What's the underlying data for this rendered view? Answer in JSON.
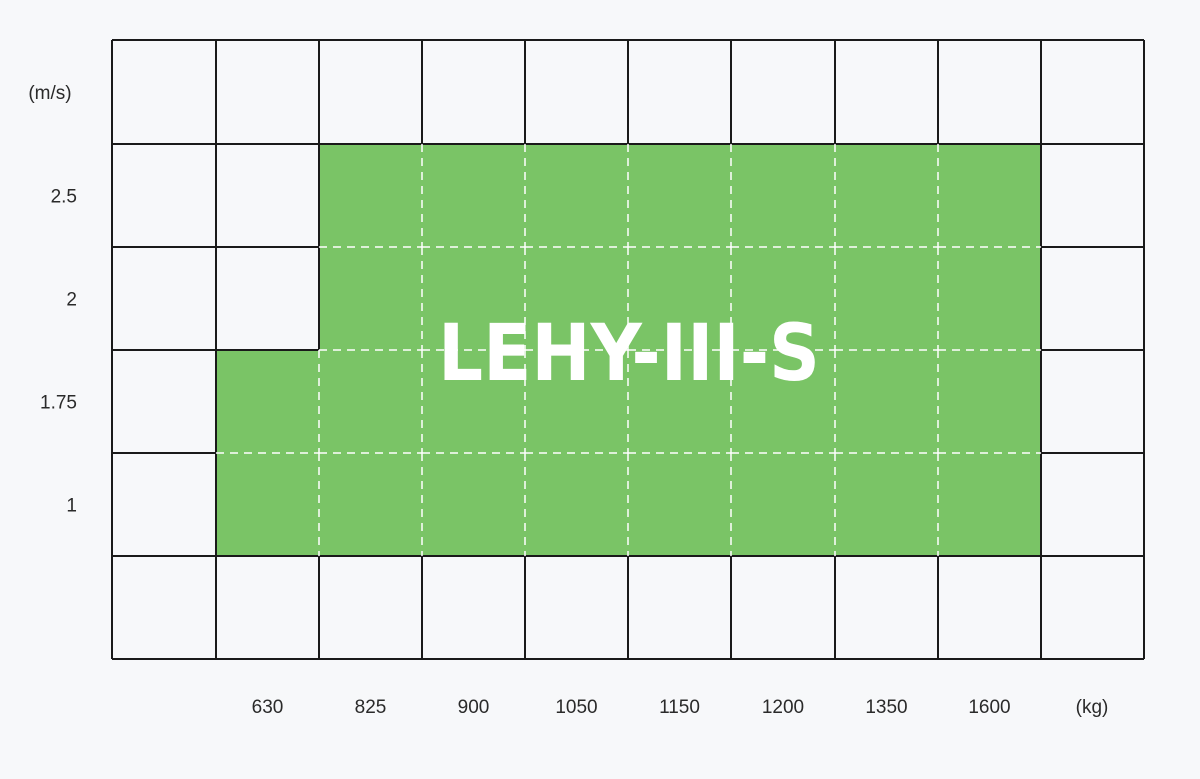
{
  "diagram": {
    "title": "LEHY-III-S",
    "y_unit": "(m/s)",
    "x_unit": "(kg)",
    "speeds": [
      "2.5",
      "2",
      "1.75",
      "1"
    ],
    "loads": [
      "630",
      "825",
      "900",
      "1050",
      "1150",
      "1200",
      "1350",
      "1600"
    ],
    "coverage": {
      "2.5": [
        "825",
        "900",
        "1050",
        "1150",
        "1200",
        "1350",
        "1600"
      ],
      "2": [
        "825",
        "900",
        "1050",
        "1150",
        "1200",
        "1350",
        "1600"
      ],
      "1.75": [
        "630",
        "825",
        "900",
        "1050",
        "1150",
        "1200",
        "1350",
        "1600"
      ],
      "1": [
        "630",
        "825",
        "900",
        "1050",
        "1150",
        "1200",
        "1350",
        "1600"
      ]
    },
    "colors": {
      "available": "#7ac466",
      "grid": "#1a1a1a",
      "background": "#f7f8fa"
    }
  }
}
